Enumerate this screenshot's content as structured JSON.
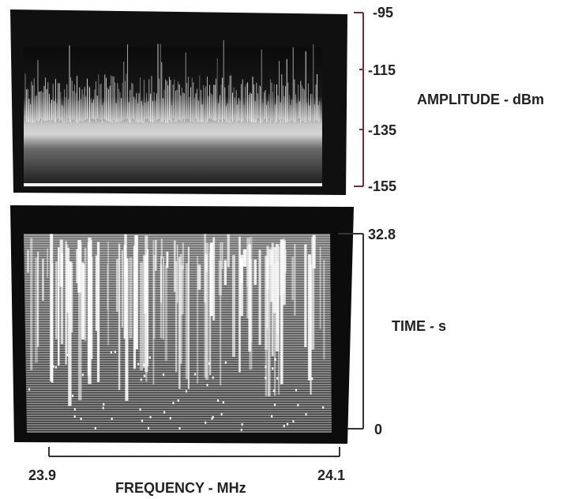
{
  "amplitude": {
    "label": "AMPLITUDE - dBm",
    "ticks": [
      "-95",
      "-115",
      "-135",
      "-155"
    ]
  },
  "time": {
    "label": "TIME - s",
    "ticks": [
      "32.8",
      "0"
    ]
  },
  "frequency": {
    "label": "FREQUENCY - MHz",
    "ticks": [
      "23.9",
      "24.1"
    ]
  }
}
